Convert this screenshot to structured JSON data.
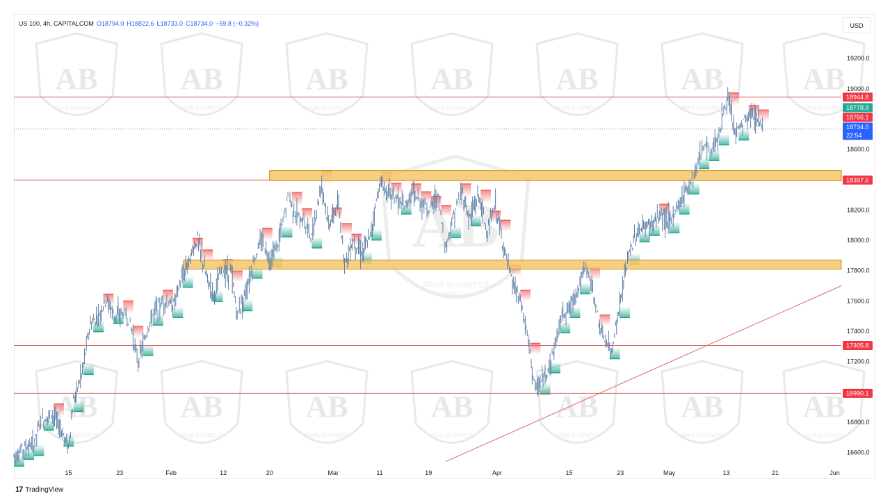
{
  "header": {
    "symbol": "US 100, 4h, CAPITALCOM",
    "open": "O18794.0",
    "high": "H18822.6",
    "low": "L18733.0",
    "close": "C18734.0",
    "change": "−59.8 (−0.32%)"
  },
  "currency": "USD",
  "footer": {
    "brand": "TradingView"
  },
  "watermark": {
    "line1": "ARAB BUSINESS",
    "line2": "COMPANY L.L.C",
    "logo_letters": "AB"
  },
  "colors": {
    "candle": "#5b7ea8",
    "bull_band": "#1fa38a",
    "bear_band": "#f05c5c",
    "level_line": "#e06666",
    "zone_fill": "#f6c76b",
    "zone_stroke": "#c98b16",
    "last_price_bg": "#2962ff"
  },
  "chart_data": {
    "type": "line",
    "instrument": "US 100",
    "timeframe": "4h",
    "y_axis": {
      "ticks": [
        "19200.0",
        "19000.0",
        "18800.0",
        "18600.0",
        "18400.0",
        "18200.0",
        "18000.0",
        "17800.0",
        "17600.0",
        "17400.0",
        "17200.0",
        "17000.0",
        "16800.0",
        "16600.0"
      ],
      "range": [
        16520,
        19320
      ]
    },
    "x_axis": {
      "ticks": [
        "15",
        "23",
        "Feb",
        "12",
        "20",
        "Mar",
        "11",
        "19",
        "Apr",
        "15",
        "23",
        "May",
        "13",
        "21",
        "Jun"
      ]
    },
    "price_path": [
      [
        0.0,
        16580
      ],
      [
        1.6,
        16640
      ],
      [
        2.4,
        16650
      ],
      [
        3.2,
        16800
      ],
      [
        4.6,
        16860
      ],
      [
        5.6,
        16760
      ],
      [
        6.6,
        16640
      ],
      [
        7.2,
        16940
      ],
      [
        8.2,
        17120
      ],
      [
        9.2,
        17440
      ],
      [
        10.4,
        17520
      ],
      [
        11.2,
        17610
      ],
      [
        12.2,
        17500
      ],
      [
        13.2,
        17520
      ],
      [
        14.0,
        17470
      ],
      [
        15.0,
        17200
      ],
      [
        16.2,
        17420
      ],
      [
        17.0,
        17540
      ],
      [
        18.2,
        17600
      ],
      [
        19.2,
        17560
      ],
      [
        20.0,
        17700
      ],
      [
        21.2,
        17880
      ],
      [
        22.2,
        18010
      ],
      [
        23.2,
        17770
      ],
      [
        24.2,
        17640
      ],
      [
        25.0,
        17790
      ],
      [
        26.2,
        17800
      ],
      [
        27.0,
        17510
      ],
      [
        28.2,
        17700
      ],
      [
        29.2,
        17900
      ],
      [
        30.0,
        18000
      ],
      [
        31.0,
        17870
      ],
      [
        32.0,
        17990
      ],
      [
        33.2,
        18300
      ],
      [
        34.0,
        18170
      ],
      [
        35.0,
        18130
      ],
      [
        36.0,
        18020
      ],
      [
        37.2,
        18380
      ],
      [
        38.0,
        18100
      ],
      [
        39.2,
        18230
      ],
      [
        40.0,
        17850
      ],
      [
        41.0,
        18000
      ],
      [
        42.0,
        17920
      ],
      [
        43.0,
        18010
      ],
      [
        44.2,
        18380
      ],
      [
        45.0,
        18330
      ],
      [
        46.0,
        18290
      ],
      [
        47.2,
        18220
      ],
      [
        48.2,
        18310
      ],
      [
        49.2,
        18250
      ],
      [
        50.2,
        18200
      ],
      [
        51.2,
        18300
      ],
      [
        52.2,
        17950
      ],
      [
        53.2,
        18180
      ],
      [
        54.2,
        18320
      ],
      [
        55.0,
        18140
      ],
      [
        56.2,
        18300
      ],
      [
        57.2,
        18050
      ],
      [
        58.2,
        18230
      ],
      [
        59.2,
        17950
      ],
      [
        60.2,
        17720
      ],
      [
        61.2,
        17600
      ],
      [
        62.2,
        17330
      ],
      [
        63.0,
        17010
      ],
      [
        64.2,
        17100
      ],
      [
        65.2,
        17260
      ],
      [
        66.2,
        17510
      ],
      [
        67.2,
        17560
      ],
      [
        68.2,
        17690
      ],
      [
        69.2,
        17830
      ],
      [
        70.2,
        17610
      ],
      [
        71.0,
        17380
      ],
      [
        72.2,
        17270
      ],
      [
        73.2,
        17560
      ],
      [
        74.2,
        17880
      ],
      [
        75.2,
        18040
      ],
      [
        76.2,
        18090
      ],
      [
        77.2,
        18110
      ],
      [
        78.2,
        18170
      ],
      [
        79.2,
        18120
      ],
      [
        80.2,
        18220
      ],
      [
        81.2,
        18340
      ],
      [
        82.2,
        18430
      ],
      [
        83.2,
        18620
      ],
      [
        84.2,
        18590
      ],
      [
        85.2,
        18700
      ],
      [
        86.2,
        18940
      ],
      [
        87.2,
        18700
      ],
      [
        88.2,
        18780
      ],
      [
        89.2,
        18830
      ],
      [
        90.2,
        18780
      ],
      [
        90.6,
        18734
      ]
    ],
    "x_domain": [
      0,
      100
    ],
    "x_tick_positions": [
      6.6,
      12.8,
      19.0,
      25.3,
      30.9,
      38.6,
      44.2,
      50.1,
      58.4,
      67.1,
      73.3,
      79.2,
      86.1,
      92.0,
      99.2
    ],
    "horizontal_levels": [
      18944.8,
      18397.6,
      17305.8,
      16990.1
    ],
    "support_resistance_zones": [
      {
        "low": 18395,
        "high": 18460,
        "x_start": 30.9
      },
      {
        "low": 17810,
        "high": 17870,
        "x_start": 20.5
      }
    ],
    "trendline": {
      "from": [
        52.2,
        16540
      ],
      "to": [
        100,
        17700
      ]
    },
    "price_labels": [
      {
        "value": "18944.8",
        "style": "level"
      },
      {
        "value": "18778.9",
        "style": "bull"
      },
      {
        "value": "18766.1",
        "style": "bear"
      },
      {
        "value": "18734.0",
        "style": "last"
      },
      {
        "value": "22:54",
        "style": "last"
      },
      {
        "value": "18397.6",
        "style": "level"
      },
      {
        "value": "17305.8",
        "style": "level"
      },
      {
        "value": "16990.1",
        "style": "level"
      }
    ],
    "last_price": 18734.0,
    "countdown": "22:54"
  }
}
